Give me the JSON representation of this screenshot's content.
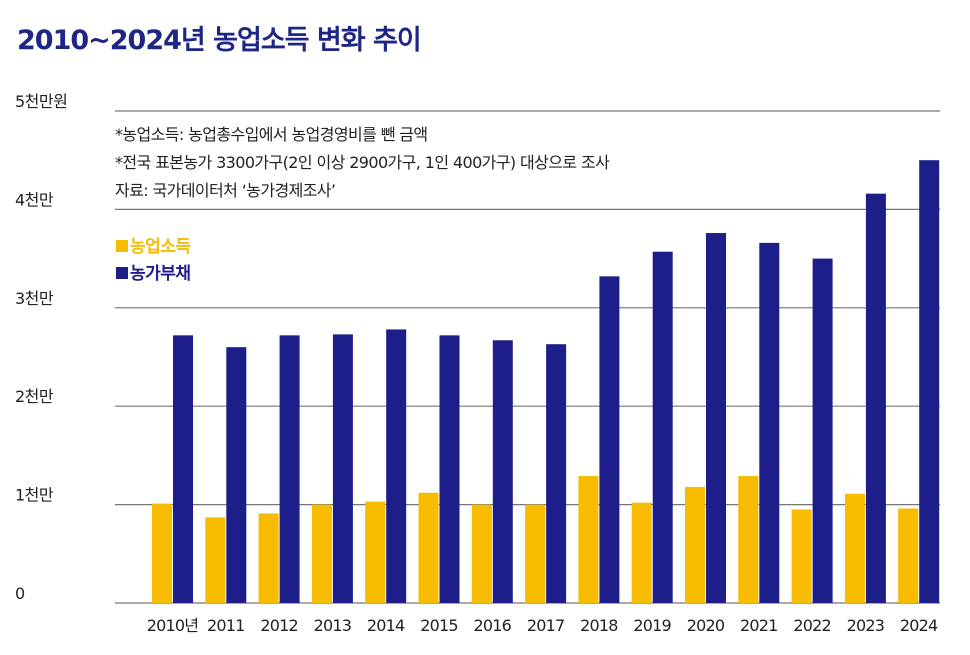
{
  "title": "2010~2024년 농업소득 변화 추이",
  "notes": [
    "*농업소득: 농업총수입에서 농업경영비를 뺀 금액",
    "*전국 표본농가 3300가구(2인 이상 2900가구, 1인 400가구) 대상으로 조사",
    "자료: 국가데이터처 ‘농가경제조사’"
  ],
  "colors": {
    "title": "#1f2585",
    "income": "#f7bb00",
    "debt": "#1e1e8a",
    "grid": "#777777"
  },
  "chart_data": {
    "type": "bar",
    "title": "2010~2024년 농업소득 변화 추이",
    "xlabel": "",
    "ylabel": "원",
    "ylim": [
      0,
      50000000
    ],
    "grid": true,
    "legend_position": "top-left",
    "y_ticks": [
      {
        "value": 0,
        "label": "0"
      },
      {
        "value": 10000000,
        "label": "1천만"
      },
      {
        "value": 20000000,
        "label": "2천만"
      },
      {
        "value": 30000000,
        "label": "3천만"
      },
      {
        "value": 40000000,
        "label": "4천만"
      },
      {
        "value": 50000000,
        "label": "5천만원"
      }
    ],
    "categories": [
      "2010년",
      "2011",
      "2012",
      "2013",
      "2014",
      "2015",
      "2016",
      "2017",
      "2018",
      "2019",
      "2020",
      "2021",
      "2022",
      "2023",
      "2024"
    ],
    "series": [
      {
        "name": "농업소득",
        "color": "#f7bb00",
        "values": [
          10100000,
          8700000,
          9100000,
          10000000,
          10300000,
          11200000,
          10000000,
          10000000,
          12900000,
          10200000,
          11800000,
          12900000,
          9500000,
          11100000,
          9600000
        ]
      },
      {
        "name": "농가부채",
        "color": "#1e1e8a",
        "values": [
          27200000,
          26000000,
          27200000,
          27300000,
          27800000,
          27200000,
          26700000,
          26300000,
          33200000,
          35700000,
          37600000,
          36600000,
          35000000,
          41600000,
          45000000
        ]
      }
    ]
  }
}
